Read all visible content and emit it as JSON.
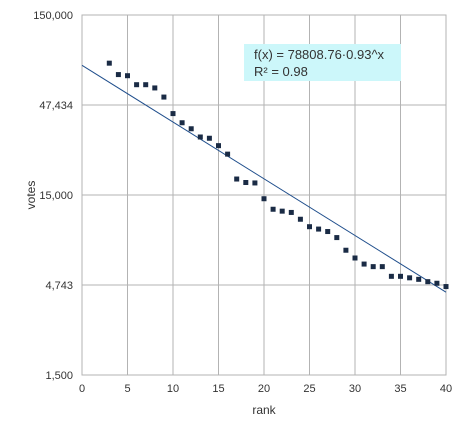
{
  "chart_data": {
    "type": "scatter",
    "title": "",
    "xlabel": "rank",
    "ylabel": "votes",
    "xlim": [
      0,
      40
    ],
    "ylim": [
      1500,
      150000
    ],
    "y_scale": "log",
    "grid": true,
    "x_ticks": [
      "0",
      "5",
      "10",
      "15",
      "20",
      "25",
      "30",
      "35",
      "40"
    ],
    "y_ticks": [
      {
        "value": 150000,
        "label": "150,000"
      },
      {
        "value": 47434,
        "label": "47,434"
      },
      {
        "value": 15000,
        "label": "15,000"
      },
      {
        "value": 4743,
        "label": "4,743"
      },
      {
        "value": 1500,
        "label": "1,500"
      }
    ],
    "marker_color": "#1a2b45",
    "trendline_color": "#1f4e8c",
    "annotation_bg": "#ccf7fa",
    "series": [
      {
        "x": [
          3,
          4,
          5,
          6,
          7,
          8,
          9,
          10,
          11,
          12,
          13,
          14,
          15,
          16,
          17,
          18,
          19,
          20,
          21,
          22,
          23,
          24,
          25,
          26,
          27,
          28,
          29,
          30,
          31,
          32,
          33,
          34,
          35,
          36,
          37,
          38,
          39,
          40
        ],
        "values": [
          81000,
          70000,
          69000,
          61500,
          61500,
          59000,
          52500,
          42500,
          37800,
          35000,
          31500,
          31000,
          28200,
          25300,
          18400,
          17600,
          17500,
          14300,
          12500,
          12200,
          12000,
          11000,
          10000,
          9700,
          9400,
          8700,
          7400,
          6700,
          6200,
          6000,
          6000,
          5300,
          5300,
          5200,
          5100,
          4950,
          4850,
          4650
        ]
      }
    ],
    "trendline": {
      "a": 78808.76,
      "b": 0.93,
      "x_range": [
        0,
        40
      ]
    },
    "annotation": {
      "line1": "f(x) = 78808.76·0.93^x",
      "line2": "R² = 0.98"
    }
  }
}
